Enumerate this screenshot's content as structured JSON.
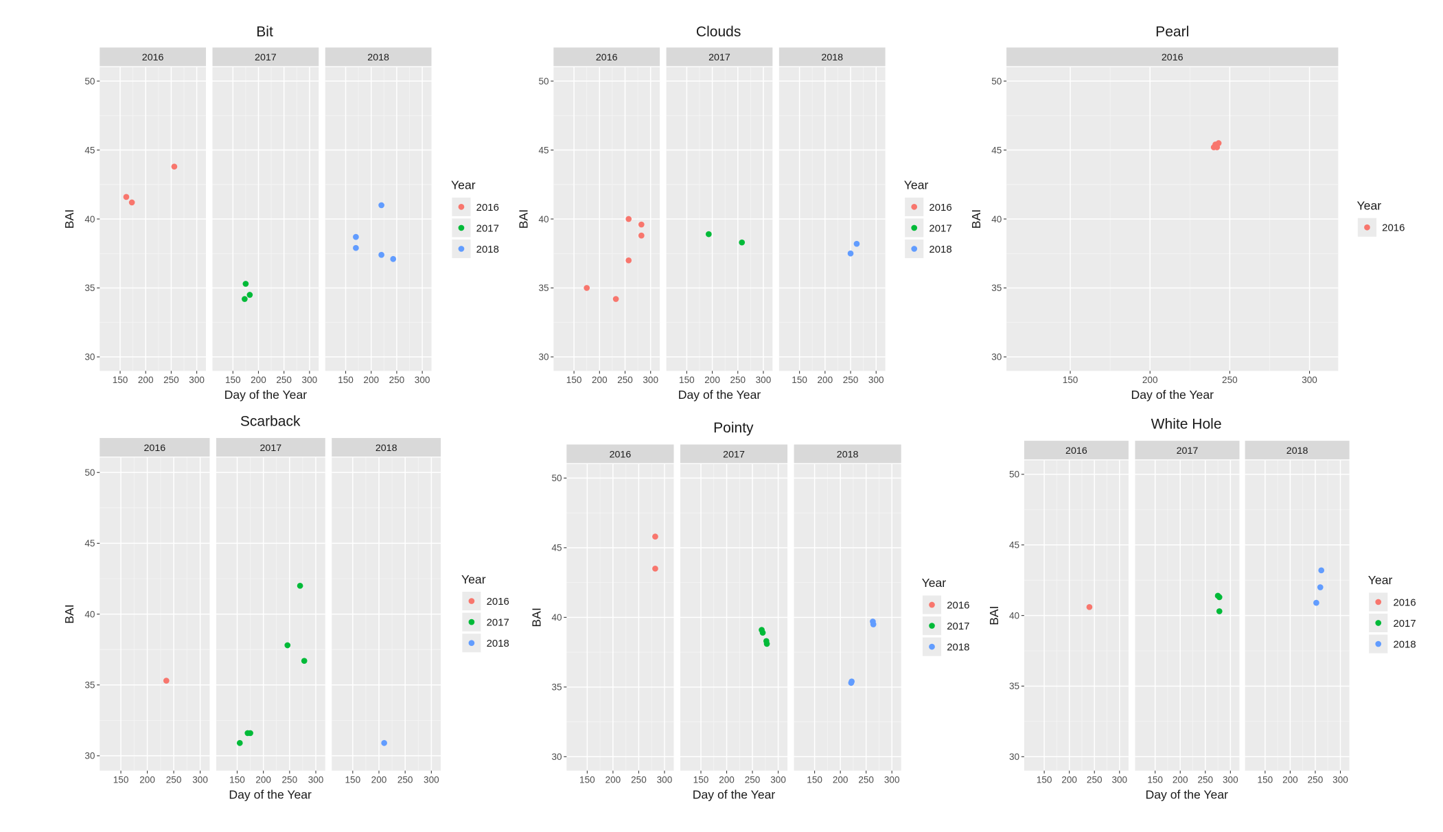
{
  "chart_data": [
    {
      "type": "scatter",
      "title": "Bit",
      "xlabel": "Day of the Year",
      "ylabel": "BAI",
      "xlim": [
        110,
        318
      ],
      "ylim": [
        29,
        52
      ],
      "xticks": [
        150,
        200,
        250,
        300
      ],
      "yticks": [
        30,
        35,
        40,
        45,
        50
      ],
      "grid": true,
      "facets": [
        "2016",
        "2017",
        "2018"
      ],
      "legend": {
        "title": "Year",
        "position": "right",
        "entries": [
          "2016",
          "2017",
          "2018"
        ]
      },
      "series": [
        {
          "name": "2016",
          "color": "#F8766D",
          "points": [
            [
              162,
              41.6
            ],
            [
              173,
              41.2
            ],
            [
              256,
              43.8
            ]
          ]
        },
        {
          "name": "2017",
          "color": "#00BA38",
          "points": [
            [
              175,
              35.3
            ],
            [
              173,
              34.2
            ],
            [
              183,
              34.5
            ]
          ]
        },
        {
          "name": "2018",
          "color": "#619CFF",
          "points": [
            [
              170,
              38.7
            ],
            [
              170,
              37.9
            ],
            [
              220,
              41.0
            ],
            [
              220,
              37.4
            ],
            [
              243,
              37.1
            ]
          ]
        }
      ]
    },
    {
      "type": "scatter",
      "title": "Clouds",
      "xlabel": "Day of the Year",
      "ylabel": "BAI",
      "xlim": [
        110,
        318
      ],
      "ylim": [
        29,
        52
      ],
      "xticks": [
        150,
        200,
        250,
        300
      ],
      "yticks": [
        30,
        35,
        40,
        45,
        50
      ],
      "grid": true,
      "facets": [
        "2016",
        "2017",
        "2018"
      ],
      "legend": {
        "title": "Year",
        "position": "right",
        "entries": [
          "2016",
          "2017",
          "2018"
        ]
      },
      "series": [
        {
          "name": "2016",
          "color": "#F8766D",
          "points": [
            [
              175,
              35.0
            ],
            [
              232,
              34.2
            ],
            [
              257,
              40.0
            ],
            [
              257,
              37.0
            ],
            [
              282,
              39.6
            ],
            [
              282,
              38.8
            ]
          ]
        },
        {
          "name": "2017",
          "color": "#00BA38",
          "points": [
            [
              193,
              38.9
            ],
            [
              258,
              38.3
            ]
          ]
        },
        {
          "name": "2018",
          "color": "#619CFF",
          "points": [
            [
              250,
              37.5
            ],
            [
              262,
              38.2
            ]
          ]
        }
      ]
    },
    {
      "type": "scatter",
      "title": "Pearl",
      "xlabel": "Day of the Year",
      "ylabel": "BAI",
      "xlim": [
        110,
        318
      ],
      "ylim": [
        29,
        52
      ],
      "xticks": [
        150,
        200,
        250,
        300
      ],
      "yticks": [
        30,
        35,
        40,
        45,
        50
      ],
      "grid": true,
      "facets": [
        "2016"
      ],
      "legend": {
        "title": "Year",
        "position": "right",
        "entries": [
          "2016"
        ]
      },
      "series": [
        {
          "name": "2016",
          "color": "#F8766D",
          "points": [
            [
              240,
              45.2
            ],
            [
              241,
              45.4
            ],
            [
              243,
              45.5
            ],
            [
              242,
              45.2
            ]
          ]
        }
      ]
    },
    {
      "type": "scatter",
      "title": "Scarback",
      "xlabel": "Day of the Year",
      "ylabel": "BAI",
      "xlim": [
        110,
        318
      ],
      "ylim": [
        29,
        52
      ],
      "xticks": [
        150,
        200,
        250,
        300
      ],
      "yticks": [
        30,
        35,
        40,
        45,
        50
      ],
      "grid": true,
      "facets": [
        "2016",
        "2017",
        "2018"
      ],
      "legend": {
        "title": "Year",
        "position": "right",
        "entries": [
          "2016",
          "2017",
          "2018"
        ]
      },
      "series": [
        {
          "name": "2016",
          "color": "#F8766D",
          "points": [
            [
              236,
              35.3
            ]
          ]
        },
        {
          "name": "2017",
          "color": "#00BA38",
          "points": [
            [
              155,
              30.9
            ],
            [
              170,
              31.6
            ],
            [
              175,
              31.6
            ],
            [
              246,
              37.8
            ],
            [
              270,
              42.0
            ],
            [
              278,
              36.7
            ]
          ]
        },
        {
          "name": "2018",
          "color": "#619CFF",
          "points": [
            [
              210,
              30.9
            ]
          ]
        }
      ]
    },
    {
      "type": "scatter",
      "title": "Pointy",
      "xlabel": "Day of the Year",
      "ylabel": "BAI",
      "xlim": [
        110,
        318
      ],
      "ylim": [
        29,
        52
      ],
      "xticks": [
        150,
        200,
        250,
        300
      ],
      "yticks": [
        30,
        35,
        40,
        45,
        50
      ],
      "grid": true,
      "facets": [
        "2016",
        "2017",
        "2018"
      ],
      "legend": {
        "title": "Year",
        "position": "right",
        "entries": [
          "2016",
          "2017",
          "2018"
        ]
      },
      "series": [
        {
          "name": "2016",
          "color": "#F8766D",
          "points": [
            [
              282,
              45.8
            ],
            [
              282,
              43.5
            ]
          ]
        },
        {
          "name": "2017",
          "color": "#00BA38",
          "points": [
            [
              268,
              39.1
            ],
            [
              270,
              38.9
            ],
            [
              277,
              38.3
            ],
            [
              278,
              38.1
            ]
          ]
        },
        {
          "name": "2018",
          "color": "#619CFF",
          "points": [
            [
              222,
              35.4
            ],
            [
              221,
              35.3
            ],
            [
              263,
              39.7
            ],
            [
              264,
              39.5
            ]
          ]
        }
      ]
    },
    {
      "type": "scatter",
      "title": "White Hole",
      "xlabel": "Day of the Year",
      "ylabel": "BAI",
      "xlim": [
        110,
        318
      ],
      "ylim": [
        29,
        52
      ],
      "xticks": [
        150,
        200,
        250,
        300
      ],
      "yticks": [
        30,
        35,
        40,
        45,
        50
      ],
      "grid": true,
      "facets": [
        "2016",
        "2017",
        "2018"
      ],
      "legend": {
        "title": "Year",
        "position": "right",
        "entries": [
          "2016",
          "2017",
          "2018"
        ]
      },
      "series": [
        {
          "name": "2016",
          "color": "#F8766D",
          "points": [
            [
              240,
              40.6
            ]
          ]
        },
        {
          "name": "2017",
          "color": "#00BA38",
          "points": [
            [
              275,
              41.4
            ],
            [
              278,
              41.3
            ],
            [
              278,
              40.3
            ]
          ]
        },
        {
          "name": "2018",
          "color": "#619CFF",
          "points": [
            [
              252,
              40.9
            ],
            [
              260,
              42.0
            ],
            [
              262,
              43.2
            ]
          ]
        }
      ]
    }
  ]
}
